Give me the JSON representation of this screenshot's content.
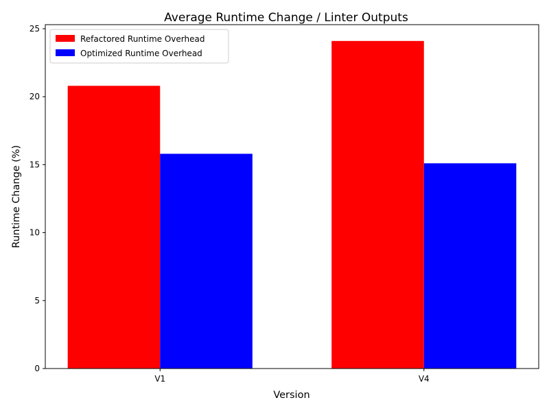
{
  "chart_data": {
    "type": "bar",
    "title": "Average Runtime Change / Linter Outputs",
    "xlabel": "Version",
    "ylabel": "Runtime Change (%)",
    "categories": [
      "V1",
      "V4"
    ],
    "series": [
      {
        "name": "Refactored Runtime Overhead",
        "color": "#ff0000",
        "values": [
          20.8,
          24.1
        ]
      },
      {
        "name": "Optimized Runtime Overhead",
        "color": "#0000ff",
        "values": [
          15.8,
          15.1
        ]
      }
    ],
    "ylim": [
      0,
      25.3
    ],
    "yticks": [
      0,
      5,
      10,
      15,
      20,
      25
    ],
    "grid": false,
    "legend_position": "top-left"
  }
}
